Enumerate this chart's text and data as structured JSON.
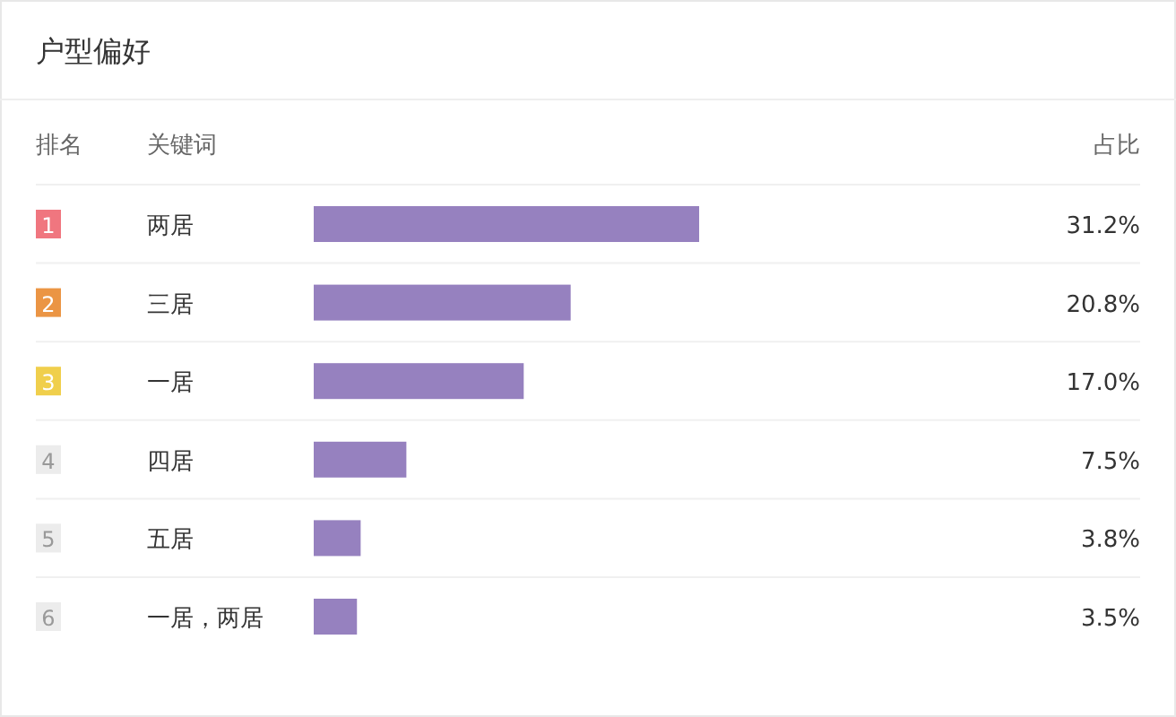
{
  "chart_data": {
    "type": "bar",
    "orientation": "horizontal",
    "title": "户型偏好",
    "categories": [
      "两居",
      "三居",
      "一居",
      "四居",
      "五居",
      "一居，两居"
    ],
    "values": [
      31.2,
      20.8,
      17.0,
      7.5,
      3.8,
      3.5
    ],
    "value_labels": [
      "31.2%",
      "20.8%",
      "17.0%",
      "7.5%",
      "3.8%",
      "3.5%"
    ],
    "color": "#9681bf",
    "annotations": [
      "排名",
      "关键词",
      "占比",
      "1",
      "2",
      "3",
      "4",
      "5",
      "6"
    ],
    "legend": false,
    "grid": false
  }
}
